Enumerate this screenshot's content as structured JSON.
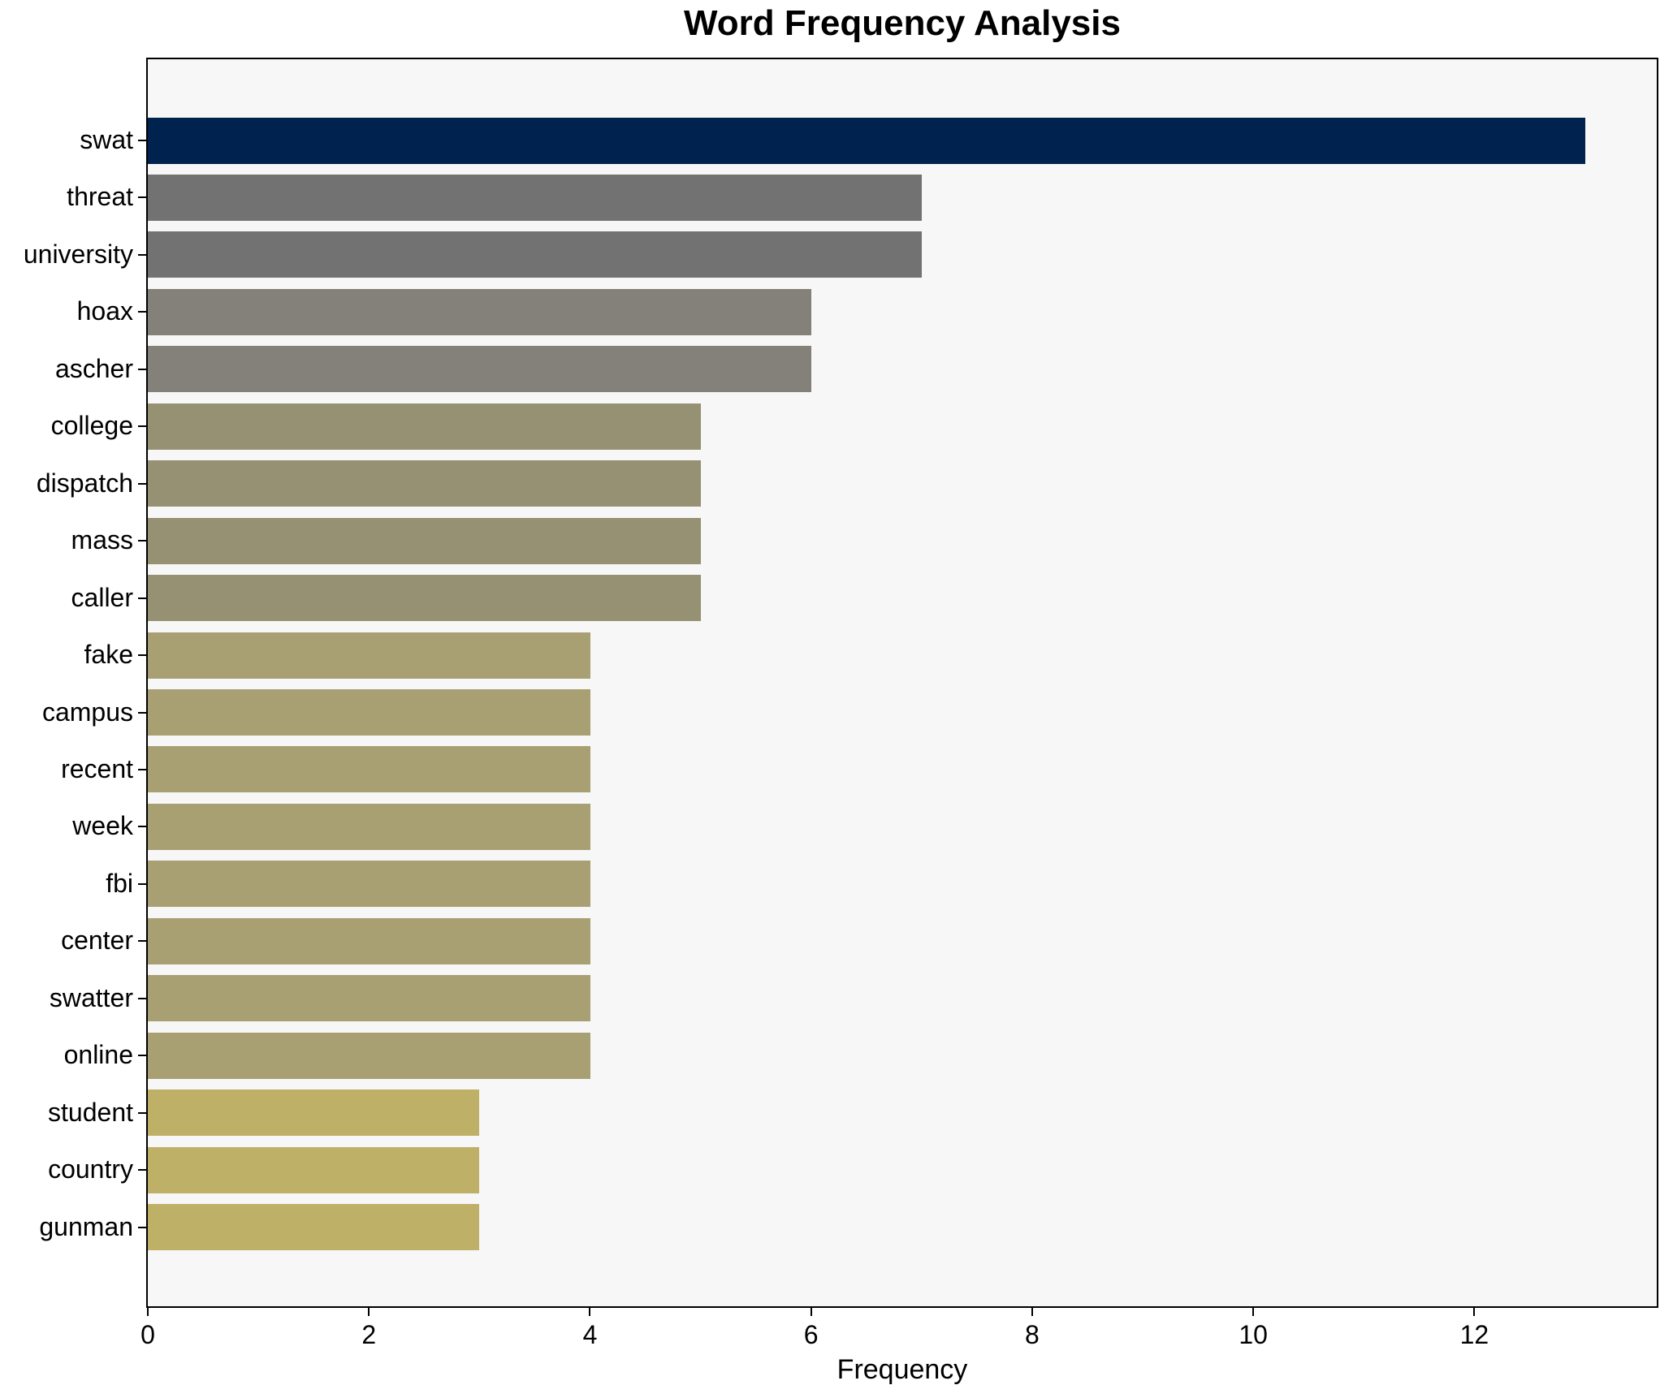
{
  "title": "Word Frequency Analysis",
  "chart_data": {
    "type": "bar",
    "orientation": "horizontal",
    "title": "Word Frequency Analysis",
    "xlabel": "Frequency",
    "ylabel": "",
    "categories": [
      "swat",
      "threat",
      "university",
      "hoax",
      "ascher",
      "college",
      "dispatch",
      "mass",
      "caller",
      "fake",
      "campus",
      "recent",
      "week",
      "fbi",
      "center",
      "swatter",
      "online",
      "student",
      "country",
      "gunman"
    ],
    "values": [
      13,
      7,
      7,
      6,
      6,
      5,
      5,
      5,
      5,
      4,
      4,
      4,
      4,
      4,
      4,
      4,
      4,
      3,
      3,
      3
    ],
    "bar_colors": [
      "#00224e",
      "#727272",
      "#727272",
      "#84817a",
      "#84817a",
      "#969173",
      "#969173",
      "#969173",
      "#969173",
      "#a89f73",
      "#a89f73",
      "#a89f73",
      "#a89f73",
      "#a89f73",
      "#a89f73",
      "#a89f73",
      "#a89f73",
      "#bfb068",
      "#bfb068",
      "#bfb068"
    ],
    "xlim": [
      0,
      13.65
    ],
    "xticks": [
      0,
      2,
      4,
      6,
      8,
      10,
      12
    ],
    "xtick_labels": [
      "0",
      "2",
      "4",
      "6",
      "8",
      "10",
      "12"
    ],
    "grid": false,
    "legend": null,
    "plot_background": "#f7f7f7",
    "figure_background": "#ffffff",
    "spine_color": "#000000"
  }
}
